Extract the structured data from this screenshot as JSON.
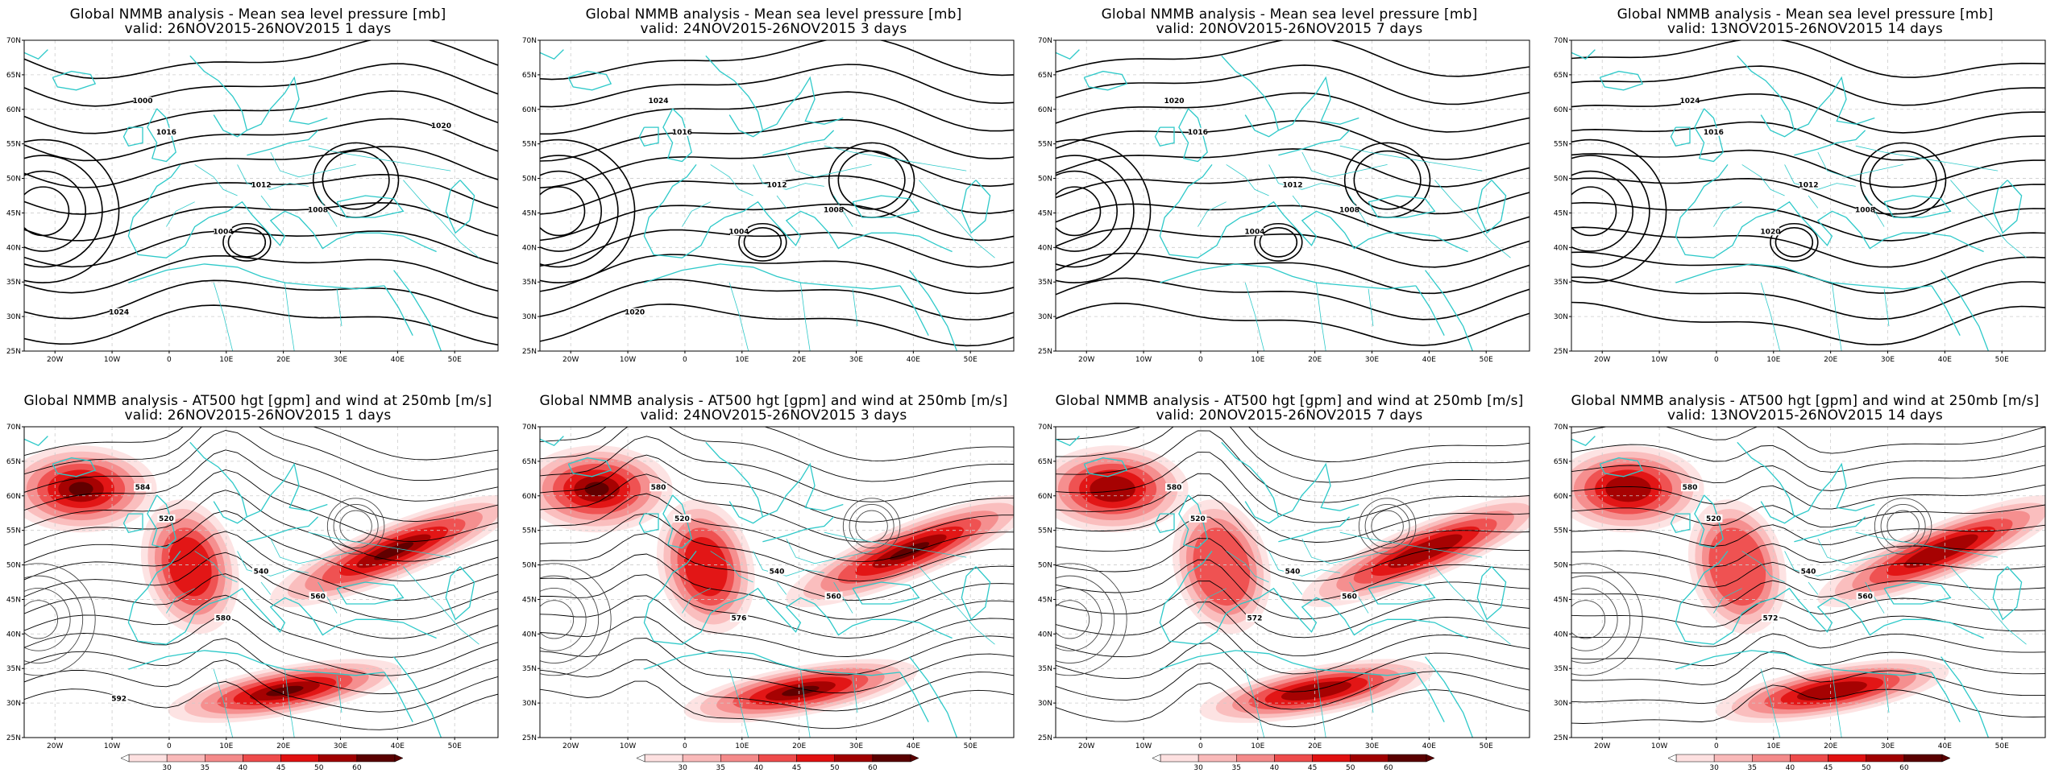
{
  "mslp_title": "Global NMMB analysis - Mean sea level pressure [mb]",
  "z500_title": "Global NMMB analysis - AT500 hgt [gpm] and wind at 250mb [m/s]",
  "periods": [
    {
      "valid": "valid: 26NOV2015-26NOV2015  1 days"
    },
    {
      "valid": "valid: 24NOV2015-26NOV2015  3 days"
    },
    {
      "valid": "valid: 20NOV2015-26NOV2015  7 days"
    },
    {
      "valid": "valid: 13NOV2015-26NOV2015  14 days"
    }
  ],
  "lon_ticks": [
    "20W",
    "10W",
    "0",
    "10E",
    "20E",
    "30E",
    "40E",
    "50E"
  ],
  "lat_ticks": [
    "70N",
    "65N",
    "60N",
    "55N",
    "50N",
    "45N",
    "40N",
    "35N",
    "30N",
    "25N"
  ],
  "colorbar": {
    "labels": [
      "30",
      "35",
      "40",
      "45",
      "50",
      "60"
    ],
    "colors": [
      "#fde0e0",
      "#f9b9b9",
      "#f48a8a",
      "#ee4b4b",
      "#e01010",
      "#a00000",
      "#5a0000"
    ]
  },
  "colors": {
    "coastline": "#2ec9c9",
    "contour": "#000000",
    "grid": "#cccccc"
  },
  "mslp_labels": [
    [
      "1016",
      "1012",
      "1008",
      "1004",
      "1000",
      "1024",
      "1020"
    ],
    [
      "1016",
      "1012",
      "1008",
      "1004",
      "1024",
      "1020"
    ],
    [
      "1016",
      "1012",
      "1008",
      "1004",
      "1020"
    ],
    [
      "1016",
      "1012",
      "1008",
      "1020",
      "1024"
    ]
  ],
  "z500_labels": [
    [
      "520",
      "540",
      "560",
      "580",
      "584",
      "592"
    ],
    [
      "520",
      "540",
      "560",
      "576",
      "580"
    ],
    [
      "520",
      "540",
      "560",
      "572",
      "580"
    ],
    [
      "520",
      "540",
      "560",
      "572",
      "580"
    ]
  ]
}
